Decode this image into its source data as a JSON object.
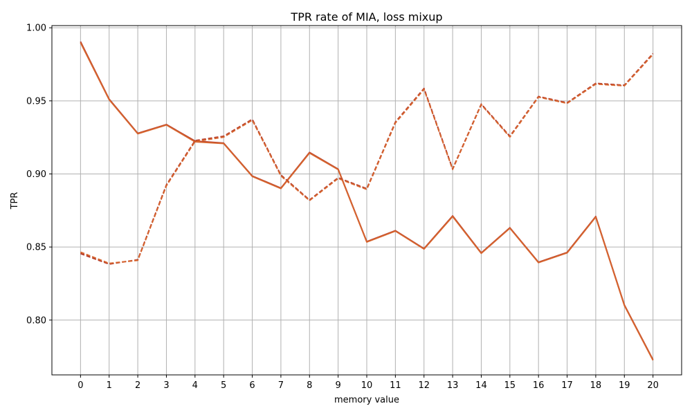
{
  "chart_data": {
    "type": "line",
    "title": "TPR rate of MIA, loss mixup",
    "xlabel": "memory value",
    "ylabel": "TPR",
    "x": [
      0,
      1,
      2,
      3,
      4,
      5,
      6,
      7,
      8,
      9,
      10,
      11,
      12,
      13,
      14,
      15,
      16,
      17,
      18,
      19,
      20
    ],
    "xticks": [
      "0",
      "1",
      "2",
      "3",
      "4",
      "5",
      "6",
      "7",
      "8",
      "9",
      "10",
      "11",
      "12",
      "13",
      "14",
      "15",
      "16",
      "17",
      "18",
      "19",
      "20"
    ],
    "yticks": [
      "0.80",
      "0.85",
      "0.90",
      "0.95",
      "1.00"
    ],
    "xlim": [
      -1,
      21
    ],
    "ylim": [
      0.7625,
      1.0015
    ],
    "grid": true,
    "series": [
      {
        "style": "solid",
        "color": "#b33a2a",
        "values": [
          0.9905,
          0.9512,
          0.9278,
          0.9338,
          0.9225,
          0.9211,
          0.8986,
          0.8903,
          0.9147,
          0.9033,
          0.8537,
          0.8612,
          0.8489,
          0.8713,
          0.846,
          0.8632,
          0.8396,
          0.8463,
          0.8709,
          0.8104,
          0.7729
        ]
      },
      {
        "style": "solid",
        "color": "#d6642e",
        "values": [
          0.9898,
          0.9508,
          0.9275,
          0.9335,
          0.922,
          0.9208,
          0.8983,
          0.89,
          0.9143,
          0.903,
          0.8534,
          0.8609,
          0.8486,
          0.8709,
          0.8457,
          0.8629,
          0.8393,
          0.846,
          0.8705,
          0.81,
          0.7725
        ]
      },
      {
        "style": "dashed",
        "color": "#b33a2a",
        "values": [
          0.8455,
          0.8383,
          0.8413,
          0.8925,
          0.9228,
          0.9258,
          0.9374,
          0.8993,
          0.8822,
          0.8974,
          0.8899,
          0.9355,
          0.9585,
          0.9035,
          0.9478,
          0.9258,
          0.953,
          0.9487,
          0.962,
          0.9607,
          0.9824
        ]
      },
      {
        "style": "dashed",
        "color": "#d6642e",
        "values": [
          0.8465,
          0.8388,
          0.8409,
          0.8919,
          0.9222,
          0.9252,
          0.9368,
          0.8987,
          0.8818,
          0.8969,
          0.8894,
          0.9349,
          0.9579,
          0.9031,
          0.9474,
          0.9253,
          0.9526,
          0.9483,
          0.9615,
          0.9603,
          0.9818
        ]
      }
    ]
  }
}
